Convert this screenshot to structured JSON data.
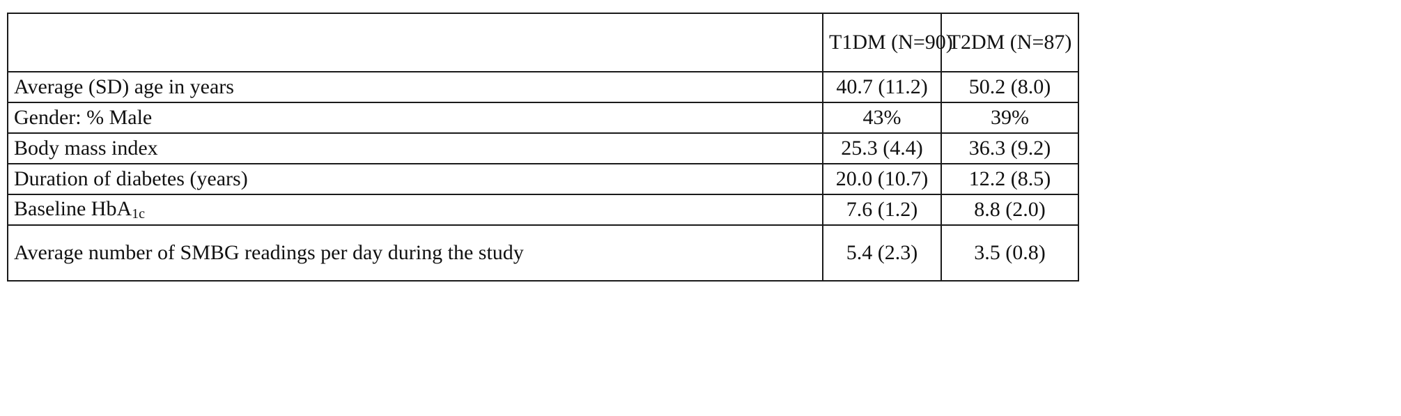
{
  "table": {
    "header": {
      "col0": "",
      "col1": "T1DM (N=90)",
      "col2": "T2DM (N=87)"
    },
    "rows": [
      {
        "label": "Average (SD) age in years",
        "t1dm": "40.7 (11.2)",
        "t2dm": "50.2 (8.0)"
      },
      {
        "label": "Gender: % Male",
        "t1dm": "43%",
        "t2dm": "39%"
      },
      {
        "label": "Body mass index",
        "t1dm": "25.3 (4.4)",
        "t2dm": "36.3 (9.2)"
      },
      {
        "label": "Duration of diabetes (years)",
        "t1dm": "20.0 (10.7)",
        "t2dm": "12.2 (8.5)"
      },
      {
        "label_main": "Baseline HbA",
        "label_sub": "1c",
        "t1dm": "7.6 (1.2)",
        "t2dm": "8.8 (2.0)"
      },
      {
        "label": "Average number of SMBG readings per day during the study",
        "t1dm": "5.4 (2.3)",
        "t2dm": "3.5 (0.8)"
      }
    ]
  }
}
